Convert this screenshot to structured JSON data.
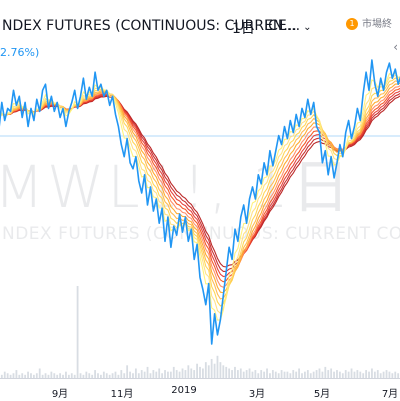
{
  "header": {
    "title": "NDEX FUTURES (CONTINUOUS: CURREN...",
    "interval": "1日",
    "exchange": "ICE...",
    "badge_count": "1",
    "market_label": "市場終",
    "change": "2.76%)"
  },
  "watermark": {
    "symbol": "MWL1!, 1日",
    "name": "NDEX FUTURES (CONTINUOUS: CURRENT CONTRACT IN F"
  },
  "colors": {
    "price_line": "#2196f3",
    "ribbon": [
      "#fff176",
      "#ffe082",
      "#ffd54f",
      "#ffb74d",
      "#ffa726",
      "#ff8a65",
      "#f4511e",
      "#e53935",
      "#c62828",
      "#b71c1c"
    ],
    "volume": "#d8dde3",
    "price_guide": "#90caf9"
  },
  "chart_data": {
    "type": "line",
    "x_tick_labels": [
      "9月",
      "11月",
      "2019",
      "3月",
      "5月",
      "7月"
    ],
    "grid": false,
    "price": [
      0.78,
      0.73,
      0.82,
      0.76,
      0.8,
      0.79,
      0.86,
      0.81,
      0.84,
      0.77,
      0.82,
      0.74,
      0.8,
      0.76,
      0.83,
      0.79,
      0.86,
      0.88,
      0.8,
      0.84,
      0.79,
      0.82,
      0.77,
      0.8,
      0.74,
      0.79,
      0.82,
      0.86,
      0.8,
      0.84,
      0.9,
      0.83,
      0.87,
      0.84,
      0.92,
      0.86,
      0.88,
      0.84,
      0.86,
      0.81,
      0.84,
      0.78,
      0.74,
      0.68,
      0.64,
      0.7,
      0.62,
      0.6,
      0.64,
      0.56,
      0.52,
      0.58,
      0.48,
      0.54,
      0.46,
      0.5,
      0.42,
      0.47,
      0.36,
      0.44,
      0.34,
      0.41,
      0.38,
      0.45,
      0.39,
      0.44,
      0.36,
      0.4,
      0.3,
      0.35,
      0.24,
      0.2,
      0.15,
      0.22,
      0.02,
      0.12,
      0.05,
      0.1,
      0.18,
      0.26,
      0.34,
      0.3,
      0.4,
      0.36,
      0.44,
      0.48,
      0.42,
      0.5,
      0.54,
      0.5,
      0.58,
      0.55,
      0.62,
      0.58,
      0.66,
      0.61,
      0.66,
      0.71,
      0.68,
      0.74,
      0.7,
      0.76,
      0.72,
      0.78,
      0.74,
      0.8,
      0.77,
      0.83,
      0.78,
      0.82,
      0.74,
      0.72,
      0.62,
      0.66,
      0.58,
      0.64,
      0.57,
      0.62,
      0.68,
      0.64,
      0.72,
      0.76,
      0.7,
      0.74,
      0.8,
      0.76,
      0.85,
      0.92,
      0.86,
      0.96,
      0.88,
      0.84,
      0.9,
      0.86,
      0.92,
      0.95,
      0.9,
      0.93,
      0.88,
      0.91,
      0.94
    ],
    "volume": [
      2,
      3,
      2,
      4,
      3,
      2,
      3,
      5,
      2,
      3,
      2,
      4,
      3,
      2,
      3,
      6,
      2,
      3,
      2,
      4,
      3,
      2,
      3,
      2,
      4,
      2,
      3,
      2,
      58,
      3,
      2,
      4,
      3,
      2,
      5,
      3,
      2,
      4,
      3,
      2,
      3,
      4,
      2,
      5,
      3,
      8,
      4,
      3,
      6,
      3,
      5,
      4,
      7,
      3,
      5,
      4,
      6,
      3,
      5,
      4,
      4,
      7,
      5,
      4,
      6,
      5,
      8,
      6,
      5,
      9,
      7,
      6,
      10,
      8,
      12,
      9,
      14,
      10,
      8,
      7,
      6,
      5,
      7,
      5,
      6,
      4,
      5,
      6,
      4,
      5,
      3,
      5,
      4,
      6,
      3,
      5,
      4,
      3,
      5,
      4,
      4,
      3,
      5,
      4,
      6,
      3,
      4,
      5,
      3,
      4,
      5,
      6,
      4,
      7,
      5,
      6,
      4,
      5,
      4,
      3,
      5,
      4,
      6,
      4,
      5,
      4,
      3,
      5,
      4,
      6,
      4,
      5,
      3,
      4,
      5,
      4,
      3,
      4,
      3,
      4,
      3
    ],
    "ribbon_periods": [
      4,
      6,
      8,
      10,
      12,
      14,
      16,
      18,
      20,
      22
    ]
  }
}
